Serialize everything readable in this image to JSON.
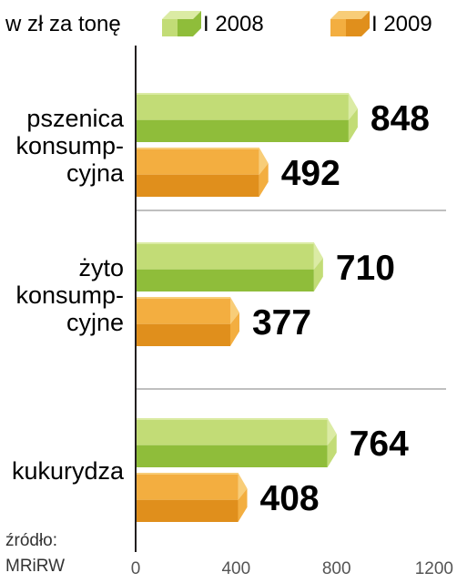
{
  "chart_data": {
    "type": "bar",
    "orientation": "horizontal",
    "unit_label": "w zł za tonę",
    "categories": [
      [
        "pszenica",
        "konsump-",
        "cyjna"
      ],
      [
        "żyto",
        "konsump-",
        "cyjne"
      ],
      [
        "kukurydza"
      ]
    ],
    "series": [
      {
        "name": "I 2008",
        "values": [
          848,
          710,
          764
        ],
        "color": "#b5d56a"
      },
      {
        "name": "I 2009",
        "values": [
          492,
          377,
          408
        ],
        "color": "#f0a638"
      }
    ],
    "xlim": [
      0,
      1200
    ],
    "xticks": [
      0,
      400,
      800,
      1200
    ],
    "legend_position": "top",
    "grid": false,
    "source": [
      "źródło:",
      "MRiRW"
    ]
  },
  "colors": {
    "green_front": "#c2dc76",
    "green_bottom": "#8fbd3a",
    "green_top": "#dbeba4",
    "orange_front": "#f3ae40",
    "orange_bottom": "#e08f1c",
    "orange_top": "#f8cd78",
    "axis": "#231f20",
    "divider": "#999999"
  }
}
